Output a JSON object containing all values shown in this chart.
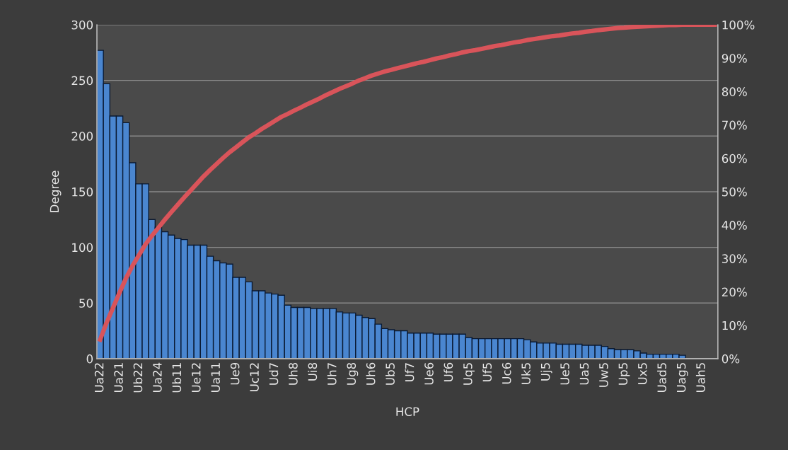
{
  "chart_data": {
    "type": "bar",
    "xlabel": "HCP",
    "ylabel": "Degree",
    "categories": [
      "Ua22",
      null,
      null,
      "Ua21",
      null,
      null,
      "Ub22",
      null,
      null,
      "Ua24",
      null,
      null,
      "Ub11",
      null,
      null,
      "Ue12",
      null,
      null,
      "Ua11",
      null,
      null,
      "Ue9",
      null,
      null,
      "Uc12",
      null,
      null,
      "Ud7",
      null,
      null,
      "Uh8",
      null,
      null,
      "Ui8",
      null,
      null,
      "Uh7",
      null,
      null,
      "Ug8",
      null,
      null,
      "Uh6",
      null,
      null,
      "Ub5",
      null,
      null,
      "Uf7",
      null,
      null,
      "Ue6",
      null,
      null,
      "Uf6",
      null,
      null,
      "Uq5",
      null,
      null,
      "Uf5",
      null,
      null,
      "Uc6",
      null,
      null,
      "Uk5",
      null,
      null,
      "Uj5",
      null,
      null,
      "Ue5",
      null,
      null,
      "Ua5",
      null,
      null,
      "Uw5",
      null,
      null,
      "Up5",
      null,
      null,
      "Ux5",
      null,
      null,
      "Uad5",
      null,
      null,
      "Uag5",
      null,
      null,
      "Uah5",
      null,
      null
    ],
    "series": [
      {
        "color": "#4a86d0",
        "values": [
          277,
          247,
          218,
          218,
          212,
          176,
          157,
          157,
          125,
          118,
          114,
          111,
          108,
          107,
          102,
          102,
          102,
          92,
          88,
          86,
          85,
          73,
          73,
          69,
          61,
          61,
          59,
          58,
          57,
          48,
          46,
          46,
          46,
          45,
          45,
          45,
          45,
          42,
          41,
          41,
          39,
          37,
          36,
          31,
          27,
          26,
          25,
          25,
          23,
          23,
          23,
          23,
          22,
          22,
          22,
          22,
          22,
          19,
          18,
          18,
          18,
          18,
          18,
          18,
          18,
          18,
          17,
          15,
          14,
          14,
          14,
          13,
          13,
          13,
          13,
          12,
          12,
          12,
          11,
          9,
          8,
          8,
          8,
          7,
          5,
          4,
          4,
          4,
          4,
          4,
          3,
          0,
          0,
          0,
          0,
          0
        ]
      },
      {
        "type": "line",
        "axis": "y2",
        "color": "#d9545a",
        "values": [
          5.7,
          10.8,
          15.3,
          19.8,
          24.1,
          27.8,
          31.0,
          34.2,
          36.8,
          39.2,
          41.6,
          43.9,
          46.1,
          48.3,
          50.4,
          52.5,
          54.6,
          56.5,
          58.3,
          60.1,
          61.8,
          63.3,
          64.8,
          66.3,
          67.5,
          68.8,
          70.0,
          71.2,
          72.4,
          73.3,
          74.3,
          75.2,
          76.2,
          77.1,
          78.0,
          79.0,
          79.9,
          80.8,
          81.6,
          82.4,
          83.3,
          84.0,
          84.8,
          85.4,
          86.0,
          86.5,
          87.0,
          87.5,
          88.0,
          88.5,
          88.9,
          89.4,
          89.9,
          90.3,
          90.8,
          91.2,
          91.7,
          92.1,
          92.4,
          92.8,
          93.2,
          93.6,
          93.9,
          94.3,
          94.7,
          95.0,
          95.4,
          95.7,
          96.0,
          96.3,
          96.6,
          96.8,
          97.1,
          97.4,
          97.6,
          97.9,
          98.1,
          98.4,
          98.6,
          98.8,
          99.0,
          99.1,
          99.3,
          99.4,
          99.5,
          99.6,
          99.7,
          99.8,
          99.9,
          99.9,
          100,
          100,
          100,
          100,
          100,
          100
        ]
      }
    ],
    "ylim": [
      0,
      300
    ],
    "yticks": [
      0,
      50,
      100,
      150,
      200,
      250,
      300
    ],
    "y2lim": [
      0,
      100
    ],
    "y2ticks": [
      {
        "value": 0,
        "label": "0%"
      },
      {
        "value": 10,
        "label": "10%"
      },
      {
        "value": 20,
        "label": "20%"
      },
      {
        "value": 30,
        "label": "30%"
      },
      {
        "value": 40,
        "label": "40%"
      },
      {
        "value": 50,
        "label": "50%"
      },
      {
        "value": 60,
        "label": "60%"
      },
      {
        "value": 70,
        "label": "70%"
      },
      {
        "value": 80,
        "label": "80%"
      },
      {
        "value": 90,
        "label": "90%"
      },
      {
        "value": 100,
        "label": "100%"
      }
    ],
    "grid": "y",
    "legend": false,
    "marker": "none",
    "line_style": "solid"
  }
}
